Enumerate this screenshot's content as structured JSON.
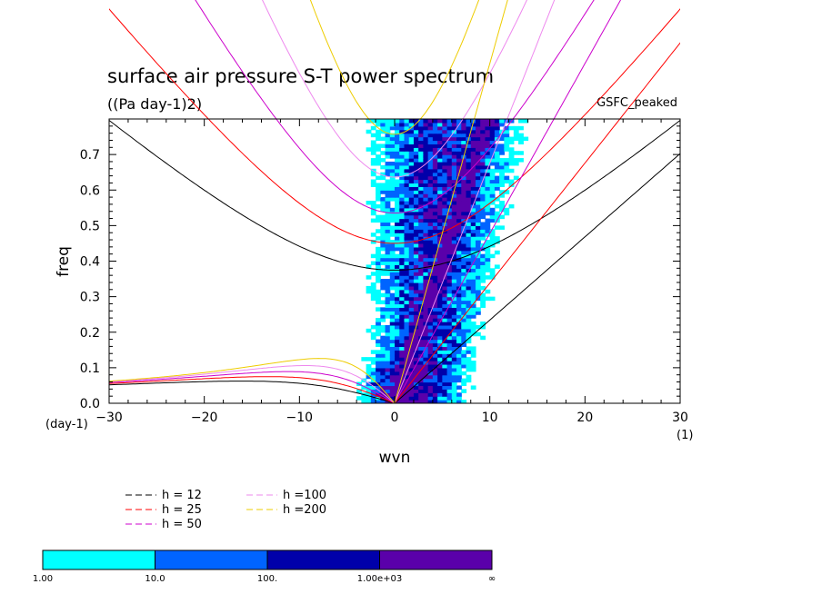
{
  "chart_data": {
    "type": "heatmap",
    "title": "surface air pressure S-T power spectrum",
    "subtitle": "((Pa day-1)2)",
    "source_label": "GSFC_peaked",
    "xlabel": "wvn",
    "ylabel": "freq",
    "x_unit": "(1)",
    "y_unit": "(day-1)",
    "xlim": [
      -30,
      30
    ],
    "ylim": [
      0,
      0.8
    ],
    "x_ticks": [
      -30,
      -20,
      -10,
      0,
      10,
      20,
      30
    ],
    "x_tick_labels": [
      "−30",
      "−20",
      "−10",
      "0",
      "10",
      "20",
      "30"
    ],
    "y_ticks": [
      0,
      0.1,
      0.2,
      0.3,
      0.4,
      0.5,
      0.6,
      0.7
    ],
    "y_tick_labels": [
      "0.0",
      "0.1",
      "0.2",
      "0.3",
      "0.4",
      "0.5",
      "0.6",
      "0.7"
    ],
    "colorbar": {
      "colors": [
        "#00ffff",
        "#0064ff",
        "#0000aa",
        "#5a00aa"
      ],
      "bounds": [
        "1.00",
        "10.0",
        "100.",
        "1.00e+03",
        "∞"
      ]
    },
    "dispersion_legend": [
      {
        "label": "h = 12",
        "color": "#000000"
      },
      {
        "label": "h = 25",
        "color": "#ff0000"
      },
      {
        "label": "h = 50",
        "color": "#cc00cc"
      },
      {
        "label": "h =100",
        "color": "#ee88ee"
      },
      {
        "label": "h =200",
        "color": "#eecc00"
      }
    ],
    "equivalent_depths_m": [
      12,
      25,
      50,
      100,
      200
    ]
  }
}
